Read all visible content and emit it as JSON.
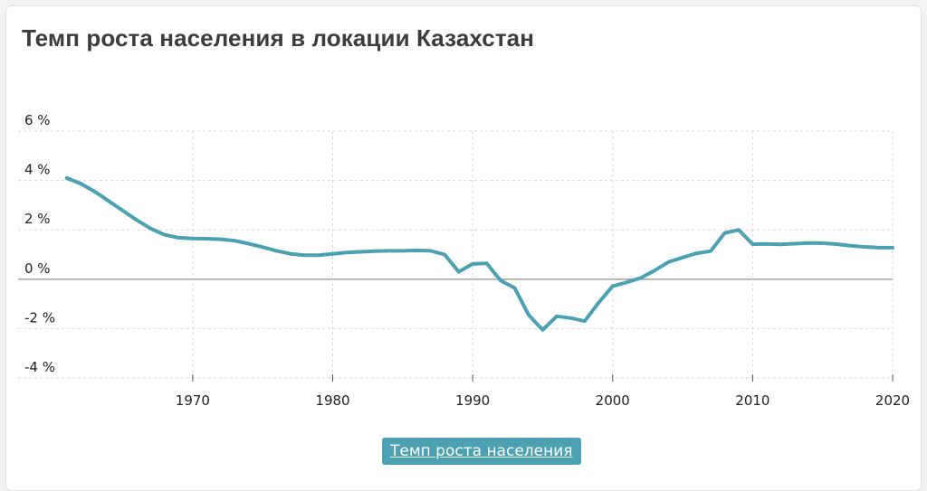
{
  "card": {
    "title": "Темп роста населения в локации Казахстан"
  },
  "legend": {
    "label": "Темп роста населения"
  },
  "colors": {
    "series": "#4ba0b1",
    "grid": "#d9d9d9",
    "zero_line": "#a8a8a8"
  },
  "chart_data": {
    "type": "line",
    "title": "Темп роста населения в локации Казахстан",
    "xlabel": "",
    "ylabel": "",
    "xlim": [
      1960.5,
      2020
    ],
    "ylim": [
      -4,
      6
    ],
    "x_ticks": [
      1970,
      1980,
      1990,
      2000,
      2010,
      2020
    ],
    "x_tick_labels": [
      "1970",
      "1980",
      "1990",
      "2000",
      "2010",
      "2020"
    ],
    "y_ticks": [
      -4,
      -2,
      0,
      2,
      4,
      6
    ],
    "y_tick_labels": [
      "-4 %",
      "-2 %",
      "0 %",
      "2 %",
      "4 %",
      "6 %"
    ],
    "grid": true,
    "legend_position": "bottom-center",
    "series": [
      {
        "name": "Темп роста населения",
        "x": [
          1961,
          1962,
          1963,
          1964,
          1965,
          1966,
          1967,
          1968,
          1969,
          1970,
          1971,
          1972,
          1973,
          1974,
          1975,
          1976,
          1977,
          1978,
          1979,
          1980,
          1981,
          1982,
          1983,
          1984,
          1985,
          1986,
          1987,
          1988,
          1989,
          1990,
          1991,
          1992,
          1993,
          1994,
          1995,
          1996,
          1997,
          1998,
          1999,
          2000,
          2001,
          2002,
          2003,
          2004,
          2005,
          2006,
          2007,
          2008,
          2009,
          2010,
          2011,
          2012,
          2013,
          2014,
          2015,
          2016,
          2017,
          2018,
          2019,
          2020
        ],
        "values": [
          4.1,
          3.87,
          3.55,
          3.17,
          2.78,
          2.4,
          2.05,
          1.8,
          1.68,
          1.65,
          1.64,
          1.62,
          1.56,
          1.44,
          1.3,
          1.15,
          1.03,
          0.97,
          0.97,
          1.03,
          1.08,
          1.11,
          1.14,
          1.15,
          1.15,
          1.17,
          1.15,
          1.0,
          0.3,
          0.62,
          0.64,
          -0.06,
          -0.35,
          -1.45,
          -2.05,
          -1.5,
          -1.57,
          -1.7,
          -0.95,
          -0.28,
          -0.13,
          0.05,
          0.35,
          0.7,
          0.88,
          1.05,
          1.14,
          1.87,
          2.0,
          1.42,
          1.43,
          1.41,
          1.44,
          1.47,
          1.46,
          1.42,
          1.36,
          1.31,
          1.28,
          1.28
        ]
      }
    ]
  }
}
